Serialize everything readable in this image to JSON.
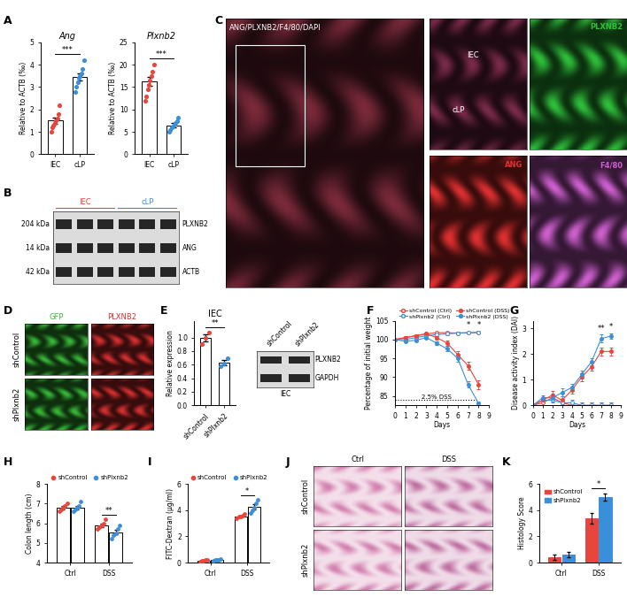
{
  "chart_data": [
    {
      "panel": "A",
      "type": "bar",
      "title": "Ang",
      "categories": [
        "IEC",
        "cLP"
      ],
      "values": [
        1.5,
        3.45
      ],
      "errors": [
        0.15,
        0.17
      ],
      "points": [
        [
          1.0,
          1.2,
          1.3,
          1.4,
          1.5,
          1.6,
          1.8,
          2.2
        ],
        [
          2.8,
          3.0,
          3.2,
          3.4,
          3.5,
          3.6,
          3.8,
          4.2
        ]
      ],
      "colors": [
        "#e8453c",
        "#3a8fd9"
      ],
      "ylabel": "Relative to ACTB (‰)",
      "ylim": [
        0,
        5
      ],
      "yticks": [
        0,
        1,
        2,
        3,
        4,
        5
      ],
      "significance": "***"
    },
    {
      "type": "bar",
      "title": "Plxnb2",
      "categories": [
        "IEC",
        "cLP"
      ],
      "values": [
        16.2,
        6.5
      ],
      "errors": [
        1.0,
        0.4
      ],
      "points": [
        [
          12,
          13,
          14.5,
          15.5,
          16.5,
          17.5,
          18.5,
          20
        ],
        [
          5,
          5.5,
          6,
          6.3,
          6.6,
          7,
          7.4,
          8.2
        ]
      ],
      "colors": [
        "#e8453c",
        "#3a8fd9"
      ],
      "ylabel": "Relative to ACTB (‰)",
      "ylim": [
        0,
        25
      ],
      "yticks": [
        0,
        5,
        10,
        15,
        20,
        25
      ],
      "significance": "***"
    },
    {
      "panel": "B",
      "type": "blot",
      "groups": [
        {
          "label": "IEC",
          "lanes": 3,
          "color": "#e8453c"
        },
        {
          "label": "cLP",
          "lanes": 3,
          "color": "#3a8fd9"
        }
      ],
      "rows": [
        {
          "name": "PLXNB2",
          "size": "204 kDa"
        },
        {
          "name": "ANG",
          "size": "14 kDa"
        },
        {
          "name": "ACTB",
          "size": "42 kDa"
        }
      ]
    },
    {
      "panel": "C",
      "type": "image",
      "label": "ANG/PLXNB2/F4/80/DAPI",
      "color": "#7a2a3a",
      "insets": [
        {
          "labels": [
            "IEC",
            "cLP"
          ],
          "color": "#7a2a4a"
        },
        {
          "labels": [
            "PLXNB2"
          ],
          "color": "#2fbf3a"
        },
        {
          "labels": [
            "ANG"
          ],
          "color": "#e03030"
        },
        {
          "labels": [
            "F4/80"
          ],
          "color": "#d060d0"
        }
      ]
    },
    {
      "panel": "D",
      "type": "image_grid",
      "columns": [
        {
          "label": "GFP",
          "color": "#38b838"
        },
        {
          "label": "PLXNB2",
          "color": "#d83030"
        }
      ],
      "rows": [
        "shControl",
        "shPlxnb2"
      ]
    },
    {
      "panel": "E",
      "type": "bar",
      "title": "IEC",
      "categories": [
        "shControl",
        "shPlxnb2"
      ],
      "values": [
        1.0,
        0.63
      ],
      "errors": [
        0.05,
        0.04
      ],
      "points": [
        [
          0.9,
          1.0,
          1.08
        ],
        [
          0.58,
          0.62,
          0.69
        ]
      ],
      "colors": [
        "#e8453c",
        "#3a8fd9"
      ],
      "ylabel": "Relative expression",
      "ylim": [
        0,
        1.25
      ],
      "yticks": [
        {
          "value": 0,
          "label": "0.0"
        },
        0.2,
        0.4,
        0.6,
        0.8,
        {
          "value": 1,
          "label": "1.0"
        }
      ],
      "significance": "**"
    },
    {
      "type": "blot",
      "caption": "IEC",
      "groups": [
        {
          "label": "shControl",
          "lanes": 1
        },
        {
          "label": "shPlxnb2",
          "lanes": 1
        }
      ],
      "rows": [
        {
          "name": "PLXNB2"
        },
        {
          "name": "GAPDH"
        }
      ]
    },
    {
      "panel": "F",
      "type": "line",
      "x": [
        0,
        1,
        2,
        3,
        4,
        5,
        6,
        7,
        8
      ],
      "xlim": [
        0,
        9
      ],
      "xticks": [
        0,
        1,
        2,
        3,
        4,
        5,
        6,
        7,
        8,
        9
      ],
      "ylim": [
        82.5,
        105
      ],
      "yticks": [
        85,
        90,
        95,
        100,
        105
      ],
      "xlabel": "Days",
      "ylabel": "Percentage of initial weight",
      "legend": "top",
      "series": [
        {
          "name": "shControl (Ctrl)",
          "color": "#e8453c",
          "marker": "open_circle",
          "line_style": "solid",
          "values": [
            100,
            100.5,
            101,
            101.5,
            101.8,
            101.8,
            101.7,
            101.8,
            101.8
          ],
          "errors": [
            0,
            0.3,
            0.3,
            0.3,
            0.3,
            0.3,
            0.3,
            0.3,
            0.3
          ]
        },
        {
          "name": "shPlxnb2 (Ctrl)",
          "color": "#3a8fd9",
          "marker": "open_circle",
          "line_style": "solid",
          "values": [
            100,
            100,
            100.5,
            101,
            101.3,
            101.5,
            101.7,
            101.8,
            101.9
          ],
          "errors": [
            0,
            0.3,
            0.3,
            0.3,
            0.3,
            0.3,
            0.3,
            0.3,
            0.3
          ]
        },
        {
          "name": "shControl (DSS)",
          "color": "#e8453c",
          "marker": "circle",
          "line_style": "solid",
          "values": [
            100,
            100.5,
            101,
            101.5,
            100.5,
            99,
            96,
            93,
            88
          ],
          "errors": [
            0,
            0.3,
            0.3,
            0.4,
            0.5,
            0.7,
            1.0,
            1.0,
            1.2
          ]
        },
        {
          "name": "shPlxnb2 (DSS)",
          "color": "#3a8fd9",
          "marker": "circle",
          "line_style": "solid",
          "values": [
            100,
            99.5,
            99.8,
            100.5,
            99,
            97.5,
            95,
            88,
            83
          ],
          "errors": [
            0,
            0.3,
            0.4,
            0.4,
            0.5,
            0.7,
            1.0,
            0.8,
            0.6
          ]
        }
      ],
      "significance": [
        null,
        null,
        null,
        null,
        null,
        null,
        null,
        "*",
        "*"
      ],
      "dss_period": {
        "label": "2.5% DSS",
        "start": 0,
        "end": 8,
        "y": 84
      }
    },
    {
      "panel": "G",
      "type": "line",
      "x": [
        0,
        1,
        2,
        3,
        4,
        5,
        6,
        7,
        8
      ],
      "xlim": [
        0,
        9
      ],
      "xticks": [
        0,
        1,
        2,
        3,
        4,
        5,
        6,
        7,
        8,
        9
      ],
      "ylim": [
        0,
        3.3
      ],
      "yticks": [
        0,
        1,
        2,
        3
      ],
      "xlabel": "Days",
      "ylabel": "Disease activity index (DAI)",
      "series": [
        {
          "name": "shControl (Ctrl)",
          "color": "#e8453c",
          "marker": "open_circle",
          "line_style": "solid",
          "values": [
            0,
            0.1,
            0.3,
            0.1,
            0,
            0,
            0,
            0,
            0
          ],
          "errors": [
            0,
            0.1,
            0.1,
            0.1,
            0.1,
            0.1,
            0.1,
            0.1,
            0.1
          ]
        },
        {
          "name": "shPlxnb2 (Ctrl)",
          "color": "#3a8fd9",
          "marker": "open_circle",
          "line_style": "solid",
          "values": [
            0,
            0.2,
            0.2,
            0.1,
            0.1,
            0,
            0,
            0,
            0
          ],
          "errors": [
            0,
            0.1,
            0.1,
            0.1,
            0.1,
            0.1,
            0.1,
            0.1,
            0.1
          ]
        },
        {
          "name": "shControl (DSS)",
          "color": "#e8453c",
          "marker": "circle",
          "line_style": "solid",
          "values": [
            0,
            0.2,
            0.4,
            0.2,
            0.6,
            1.1,
            1.5,
            2.1,
            2.1
          ],
          "errors": [
            0,
            0.1,
            0.15,
            0.15,
            0.15,
            0.15,
            0.15,
            0.15,
            0.15
          ]
        },
        {
          "name": "shPlxnb2 (DSS)",
          "color": "#3a8fd9",
          "marker": "circle",
          "line_style": "solid",
          "values": [
            0,
            0.3,
            0.3,
            0.5,
            0.7,
            1.2,
            1.7,
            2.6,
            2.7
          ],
          "errors": [
            0,
            0.1,
            0.15,
            0.15,
            0.15,
            0.15,
            0.15,
            0.15,
            0.1
          ]
        }
      ],
      "significance": [
        null,
        null,
        null,
        null,
        null,
        null,
        null,
        "**",
        "*"
      ]
    },
    {
      "panel": "H",
      "type": "bar",
      "categories": [
        "Ctrl",
        "DSS"
      ],
      "ylabel": "Colon length (cm)",
      "ylim": [
        4,
        8
      ],
      "yticks": [
        4,
        5,
        6,
        7,
        8
      ],
      "legend": "top",
      "series": [
        {
          "name": "shControl",
          "color": "#e8453c",
          "values": [
            6.8,
            5.9
          ],
          "errors": [
            0.08,
            0.09
          ],
          "points": [
            [
              6.6,
              6.7,
              6.8,
              6.9,
              7.0
            ],
            [
              5.7,
              5.8,
              5.9,
              6.0,
              6.2
            ]
          ]
        },
        {
          "name": "shPlxnb2",
          "color": "#3a8fd9",
          "values": [
            6.8,
            5.55
          ],
          "errors": [
            0.09,
            0.12
          ],
          "points": [
            [
              6.6,
              6.7,
              6.8,
              6.9,
              7.1
            ],
            [
              5.2,
              5.4,
              5.5,
              5.7,
              5.9
            ]
          ]
        }
      ],
      "significance": [
        null,
        "**"
      ]
    },
    {
      "panel": "I",
      "type": "bar",
      "categories": [
        "Ctrl",
        "DSS"
      ],
      "ylabel": "FITC-Dextran (μg/ml)",
      "ylim": [
        0,
        6
      ],
      "yticks": [
        0,
        2,
        4,
        6
      ],
      "legend": "top",
      "series": [
        {
          "name": "shControl",
          "color": "#e8453c",
          "values": [
            0.15,
            3.55
          ],
          "errors": [
            0.03,
            0.06
          ],
          "points": [
            [
              0.1,
              0.12,
              0.15,
              0.18,
              0.2
            ],
            [
              3.4,
              3.5,
              3.55,
              3.6,
              3.7
            ]
          ]
        },
        {
          "name": "shPlxnb2",
          "color": "#3a8fd9",
          "values": [
            0.2,
            4.25
          ],
          "errors": [
            0.03,
            0.2
          ],
          "points": [
            [
              0.15,
              0.18,
              0.2,
              0.22,
              0.25
            ],
            [
              3.8,
              4.0,
              4.2,
              4.5,
              4.8
            ]
          ]
        }
      ],
      "significance": [
        null,
        "*"
      ]
    },
    {
      "panel": "J",
      "type": "image_grid",
      "columns": [
        {
          "label": "Ctrl",
          "color": "#c8609a"
        },
        {
          "label": "DSS",
          "color": "#b04a8a"
        }
      ],
      "rows": [
        "shControl",
        "shPlxnb2"
      ]
    },
    {
      "panel": "K",
      "type": "bar",
      "categories": [
        "Ctrl",
        "DSS"
      ],
      "ylabel": "Histology Score",
      "ylim": [
        0,
        6
      ],
      "yticks": [
        0,
        2,
        4,
        6
      ],
      "legend": "upper left",
      "series": [
        {
          "name": "shControl",
          "color": "#e8453c",
          "values": [
            0.4,
            3.4
          ],
          "errors": [
            0.2,
            0.4
          ]
        },
        {
          "name": "shPlxnb2",
          "color": "#3a8fd9",
          "values": [
            0.6,
            5.0
          ],
          "errors": [
            0.2,
            0.3
          ]
        }
      ],
      "significance": [
        null,
        "*"
      ]
    }
  ]
}
